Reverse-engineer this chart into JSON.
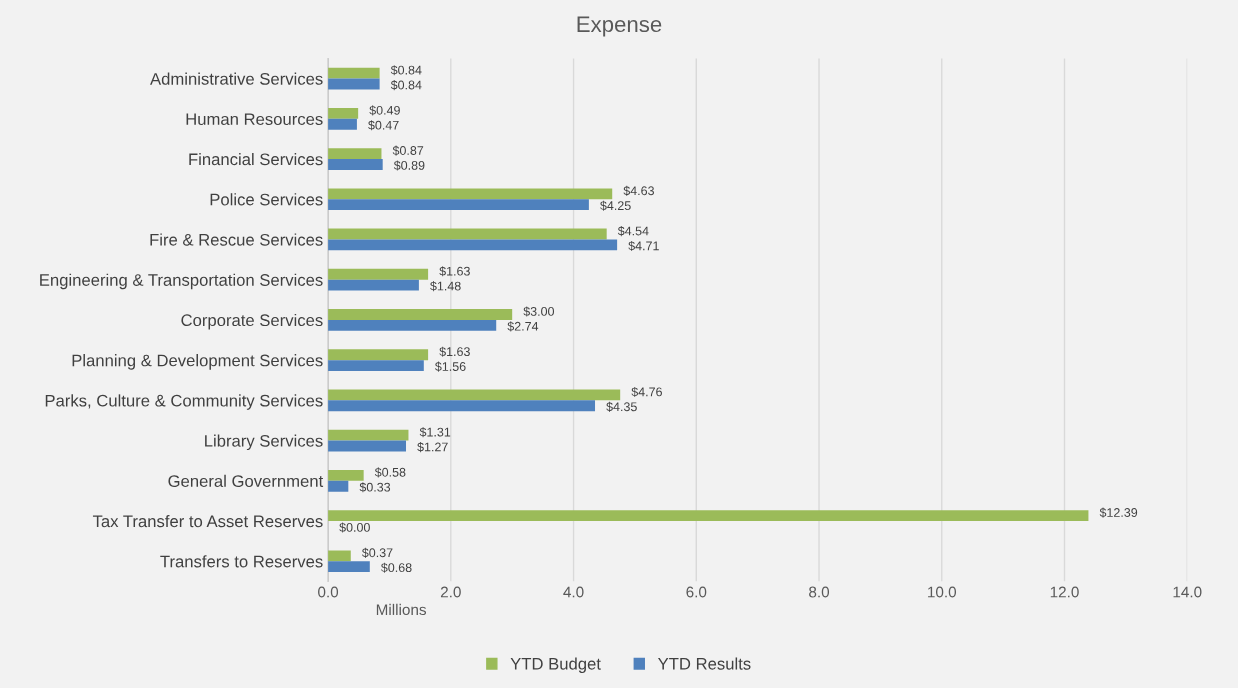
{
  "chart_data": {
    "type": "bar",
    "orientation": "horizontal",
    "title": "Expense",
    "xlabel": "Millions",
    "categories": [
      "Administrative Services",
      "Human Resources",
      "Financial Services",
      "Police Services",
      "Fire & Rescue Services",
      "Engineering & Transportation Services",
      "Corporate Services",
      "Planning & Development Services",
      "Parks, Culture & Community Services",
      "Library Services",
      "General Government",
      "Tax Transfer to Asset Reserves",
      "Transfers to Reserves"
    ],
    "series": [
      {
        "name": "YTD Budget",
        "color": "#9bbb59",
        "values": [
          0.84,
          0.49,
          0.87,
          4.63,
          4.54,
          1.63,
          3.0,
          1.63,
          4.76,
          1.31,
          0.58,
          12.39,
          0.37
        ],
        "value_labels": [
          "$0.84",
          "$0.49",
          "$0.87",
          "$4.63",
          "$4.54",
          "$1.63",
          "$3.00",
          "$1.63",
          "$4.76",
          "$1.31",
          "$0.58",
          "$12.39",
          "$0.37"
        ]
      },
      {
        "name": "YTD Results",
        "color": "#4f81bd",
        "values": [
          0.84,
          0.47,
          0.89,
          4.25,
          4.71,
          1.48,
          2.74,
          1.56,
          4.35,
          1.27,
          0.33,
          0.0,
          0.68
        ],
        "value_labels": [
          "$0.84",
          "$0.47",
          "$0.89",
          "$4.25",
          "$4.71",
          "$1.48",
          "$2.74",
          "$1.56",
          "$4.35",
          "$1.27",
          "$0.33",
          "$0.00",
          "$0.68"
        ]
      }
    ],
    "xlim": [
      0,
      14
    ],
    "xticks": [
      {
        "value": 0,
        "label": "0.0"
      },
      {
        "value": 2,
        "label": "2.0"
      },
      {
        "value": 4,
        "label": "4.0"
      },
      {
        "value": 6,
        "label": "6.0"
      },
      {
        "value": 8,
        "label": "8.0"
      },
      {
        "value": 10,
        "label": "10.0"
      },
      {
        "value": 12,
        "label": "12.0"
      },
      {
        "value": 14,
        "label": "14.0"
      }
    ],
    "grid": "x",
    "legend": "bottom"
  }
}
